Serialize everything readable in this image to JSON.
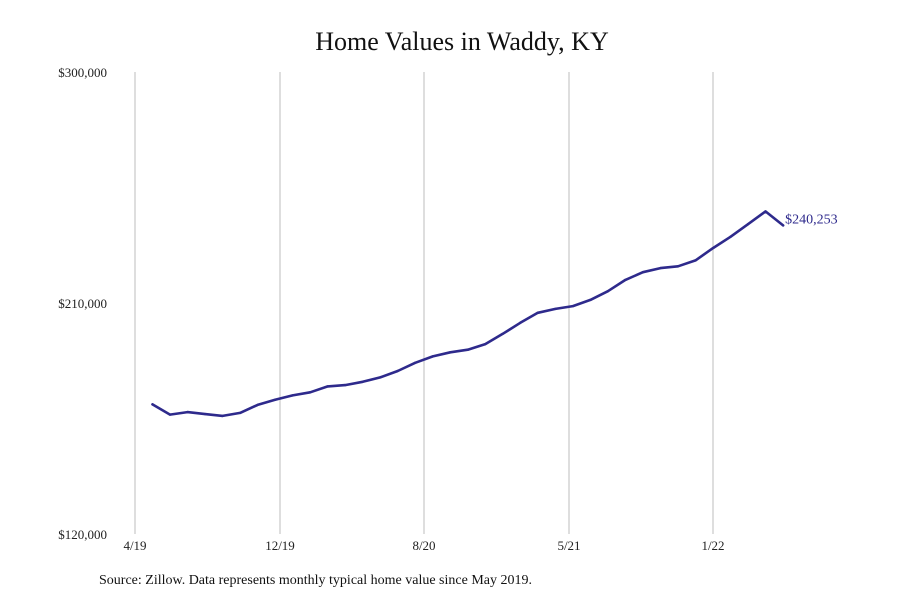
{
  "chart_data": {
    "type": "line",
    "title": "Home Values in Waddy, KY",
    "xlabel": "",
    "ylabel": "",
    "x_tick_labels": [
      "4/19",
      "12/19",
      "8/20",
      "5/21",
      "1/22"
    ],
    "y_tick_labels": [
      "$300,000",
      "$210,000",
      "$120,000"
    ],
    "ylim": [
      120000,
      300000
    ],
    "grid": "vertical",
    "legend": "none",
    "series_color": "#2e2a8c",
    "series": [
      {
        "name": "",
        "x": [
          "2019-05",
          "2019-06",
          "2019-07",
          "2019-08",
          "2019-09",
          "2019-10",
          "2019-11",
          "2019-12",
          "2020-01",
          "2020-02",
          "2020-03",
          "2020-04",
          "2020-05",
          "2020-06",
          "2020-07",
          "2020-08",
          "2020-09",
          "2020-10",
          "2020-11",
          "2020-12",
          "2021-01",
          "2021-02",
          "2021-03",
          "2021-04",
          "2021-05",
          "2021-06",
          "2021-07",
          "2021-08",
          "2021-09",
          "2021-10",
          "2021-11",
          "2021-12",
          "2022-01",
          "2022-02",
          "2022-03",
          "2022-04",
          "2022-05"
        ],
        "values": [
          170500,
          166500,
          167500,
          166700,
          166000,
          167200,
          170300,
          172300,
          174000,
          175200,
          177500,
          178000,
          179300,
          181000,
          183500,
          186700,
          189200,
          190800,
          191800,
          194000,
          198000,
          202300,
          206200,
          207700,
          208800,
          211200,
          214600,
          219000,
          222000,
          223600,
          224300,
          226600,
          231400,
          235800,
          240700,
          245700,
          240253
        ]
      }
    ],
    "end_label": "$240,253",
    "source": "Source: Zillow. Data represents monthly typical home value since May 2019."
  }
}
